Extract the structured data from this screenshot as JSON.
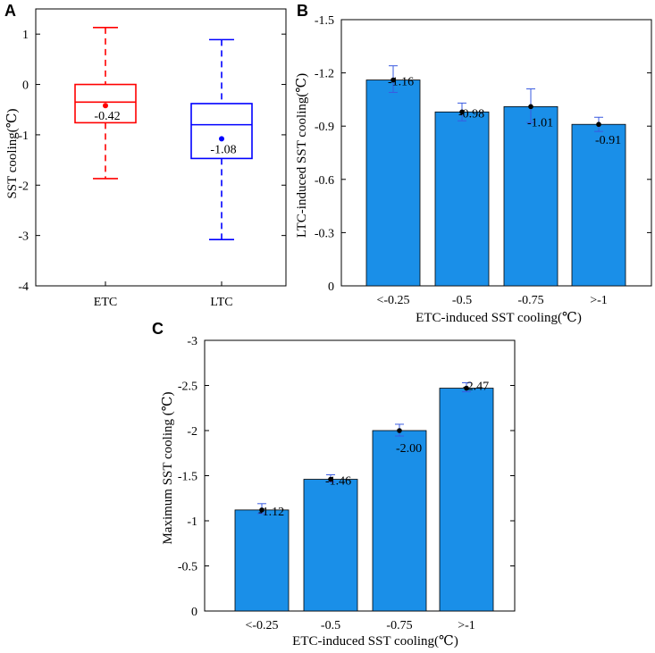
{
  "chart_data": [
    {
      "panel": "A",
      "type": "box",
      "ylabel": "SST cooling(℃)",
      "ylim": [
        -4,
        1.5
      ],
      "yticks": [
        -4,
        -3,
        -2,
        -1,
        0,
        1
      ],
      "categories": [
        "ETC",
        "LTC"
      ],
      "boxes": [
        {
          "name": "ETC",
          "color": "#ff0000",
          "whisker_low": -1.87,
          "q1": -0.76,
          "median": -0.35,
          "q3": 0.0,
          "whisker_high": 1.13,
          "mean": -0.42,
          "mean_label": "-0.42"
        },
        {
          "name": "LTC",
          "color": "#0000ff",
          "whisker_low": -3.08,
          "q1": -1.47,
          "median": -0.8,
          "q3": -0.38,
          "whisker_high": 0.89,
          "mean": -1.08,
          "mean_label": "-1.08"
        }
      ]
    },
    {
      "panel": "B",
      "type": "bar",
      "xlabel": "ETC-induced SST cooling(℃)",
      "ylabel": "LTC-induced SST cooling(℃)",
      "categories": [
        "<-0.25",
        "-0.5",
        "-0.75",
        ">-1"
      ],
      "values": [
        -1.16,
        -0.98,
        -1.01,
        -0.91
      ],
      "labels": [
        "-1.16",
        "-0.98",
        "-1.01",
        "-0.91"
      ],
      "error_low": [
        -1.09,
        -0.93,
        -0.92,
        -0.87
      ],
      "error_high": [
        -1.24,
        -1.03,
        -1.11,
        -0.95
      ],
      "ylim": [
        0,
        -1.5
      ],
      "yticks": [
        0,
        -0.3,
        -0.6,
        -0.9,
        -1.2,
        -1.5
      ],
      "yticklabels": [
        "0",
        "-0.3",
        "-0.6",
        "-0.9",
        "-1.2",
        "-1.5"
      ],
      "bar_color": "#1a8fe8",
      "label_color": "#0000ff"
    },
    {
      "panel": "C",
      "type": "bar",
      "xlabel": "ETC-induced SST cooling(℃)",
      "ylabel": "Maximum SST cooling (℃)",
      "categories": [
        "<-0.25",
        "-0.5",
        "-0.75",
        ">-1"
      ],
      "values": [
        -1.12,
        -1.46,
        -2.0,
        -2.47
      ],
      "labels": [
        "-1.12",
        "-1.46",
        "-2.00",
        "-2.47"
      ],
      "error_low": [
        -1.08,
        -1.43,
        -1.94,
        -2.43
      ],
      "error_high": [
        -1.19,
        -1.51,
        -2.07,
        -2.53
      ],
      "ylim": [
        0,
        -3
      ],
      "yticks": [
        0,
        -0.5,
        -1,
        -1.5,
        -2,
        -2.5,
        -3
      ],
      "yticklabels": [
        "0",
        "-0.5",
        "-1",
        "-1.5",
        "-2",
        "-2.5",
        "-3"
      ],
      "bar_color": "#1a8fe8",
      "label_color": "#0000ff"
    }
  ]
}
